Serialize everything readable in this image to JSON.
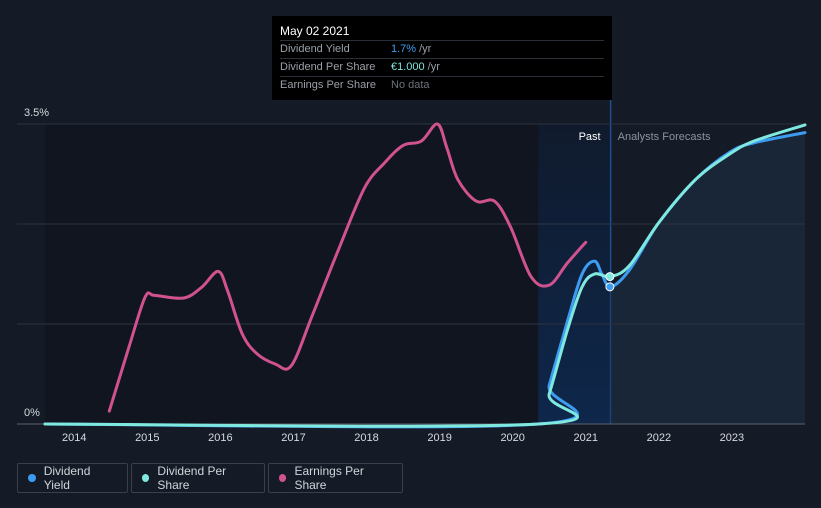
{
  "tooltip": {
    "date": "May 02 2021",
    "rows": [
      {
        "label": "Dividend Yield",
        "value": "1.7%",
        "unit": "/yr"
      },
      {
        "label": "Dividend Per Share",
        "value": "€1.000",
        "unit": "/yr"
      },
      {
        "label": "Earnings Per Share",
        "value": "No data",
        "unit": ""
      }
    ]
  },
  "regions": {
    "past": "Past",
    "forecast": "Analysts Forecasts"
  },
  "legend": [
    {
      "label": "Dividend Yield",
      "color": "#3d9bf0"
    },
    {
      "label": "Dividend Per Share",
      "color": "#7fe8df"
    },
    {
      "label": "Earnings Per Share",
      "color": "#d0528f"
    }
  ],
  "colors": {
    "background": "#151b26",
    "past_shade": "#101520",
    "highlight": "#0e2a52",
    "forecast_fill": "#1a2b3d",
    "grid": "#2c3340",
    "axis_text": "#d7dadf"
  },
  "chart_data": {
    "type": "line",
    "y_tick_labels": [
      "3.5%",
      "0%"
    ],
    "ylim": [
      0,
      3.5
    ],
    "xlim": [
      2013.6,
      2024.0
    ],
    "x_tick_labels": [
      "2014",
      "2015",
      "2016",
      "2017",
      "2018",
      "2019",
      "2020",
      "2021",
      "2022",
      "2023"
    ],
    "x_ticks": [
      2014,
      2015,
      2016,
      2017,
      2018,
      2019,
      2020,
      2021,
      2022,
      2023
    ],
    "past_shade_range": [
      2013.6,
      2021.34
    ],
    "highlight_range": [
      2020.35,
      2021.34
    ],
    "forecast_range": [
      2021.34,
      2024.0
    ],
    "markers": [
      {
        "x": 2021.33,
        "y": 1.72
      },
      {
        "x": 2021.33,
        "y": 1.6
      }
    ],
    "series": [
      {
        "name": "Earnings Per Share",
        "color": "#d0528f",
        "points": [
          [
            2014.48,
            0.15
          ],
          [
            2014.75,
            0.9
          ],
          [
            2014.97,
            1.48
          ],
          [
            2015.1,
            1.5
          ],
          [
            2015.5,
            1.47
          ],
          [
            2015.75,
            1.6
          ],
          [
            2015.97,
            1.78
          ],
          [
            2016.1,
            1.55
          ],
          [
            2016.3,
            1.05
          ],
          [
            2016.5,
            0.82
          ],
          [
            2016.75,
            0.7
          ],
          [
            2016.97,
            0.68
          ],
          [
            2017.25,
            1.25
          ],
          [
            2017.6,
            2.0
          ],
          [
            2017.97,
            2.75
          ],
          [
            2018.25,
            3.05
          ],
          [
            2018.5,
            3.25
          ],
          [
            2018.75,
            3.3
          ],
          [
            2018.97,
            3.5
          ],
          [
            2019.1,
            3.22
          ],
          [
            2019.25,
            2.85
          ],
          [
            2019.5,
            2.6
          ],
          [
            2019.75,
            2.6
          ],
          [
            2019.97,
            2.3
          ],
          [
            2020.25,
            1.72
          ],
          [
            2020.5,
            1.62
          ],
          [
            2020.75,
            1.88
          ],
          [
            2021.0,
            2.12
          ]
        ]
      },
      {
        "name": "Dividend Yield",
        "color": "#3d9bf0",
        "points": [
          [
            2013.6,
            0.0
          ],
          [
            2020.35,
            0.0
          ],
          [
            2020.5,
            0.45
          ],
          [
            2020.75,
            1.2
          ],
          [
            2020.95,
            1.75
          ],
          [
            2021.12,
            1.9
          ],
          [
            2021.22,
            1.75
          ],
          [
            2021.34,
            1.6
          ],
          [
            2021.6,
            1.8
          ],
          [
            2022.0,
            2.35
          ],
          [
            2022.5,
            2.85
          ],
          [
            2022.97,
            3.17
          ],
          [
            2023.3,
            3.28
          ],
          [
            2024.0,
            3.4
          ]
        ]
      },
      {
        "name": "Dividend Per Share",
        "color": "#7fe8df",
        "points": [
          [
            2013.6,
            0.0
          ],
          [
            2020.35,
            0.0
          ],
          [
            2020.5,
            0.35
          ],
          [
            2020.75,
            1.1
          ],
          [
            2020.95,
            1.6
          ],
          [
            2021.12,
            1.75
          ],
          [
            2021.34,
            1.72
          ],
          [
            2021.6,
            1.85
          ],
          [
            2022.0,
            2.35
          ],
          [
            2022.5,
            2.85
          ],
          [
            2022.97,
            3.15
          ],
          [
            2023.3,
            3.3
          ],
          [
            2024.0,
            3.49
          ]
        ]
      }
    ]
  }
}
